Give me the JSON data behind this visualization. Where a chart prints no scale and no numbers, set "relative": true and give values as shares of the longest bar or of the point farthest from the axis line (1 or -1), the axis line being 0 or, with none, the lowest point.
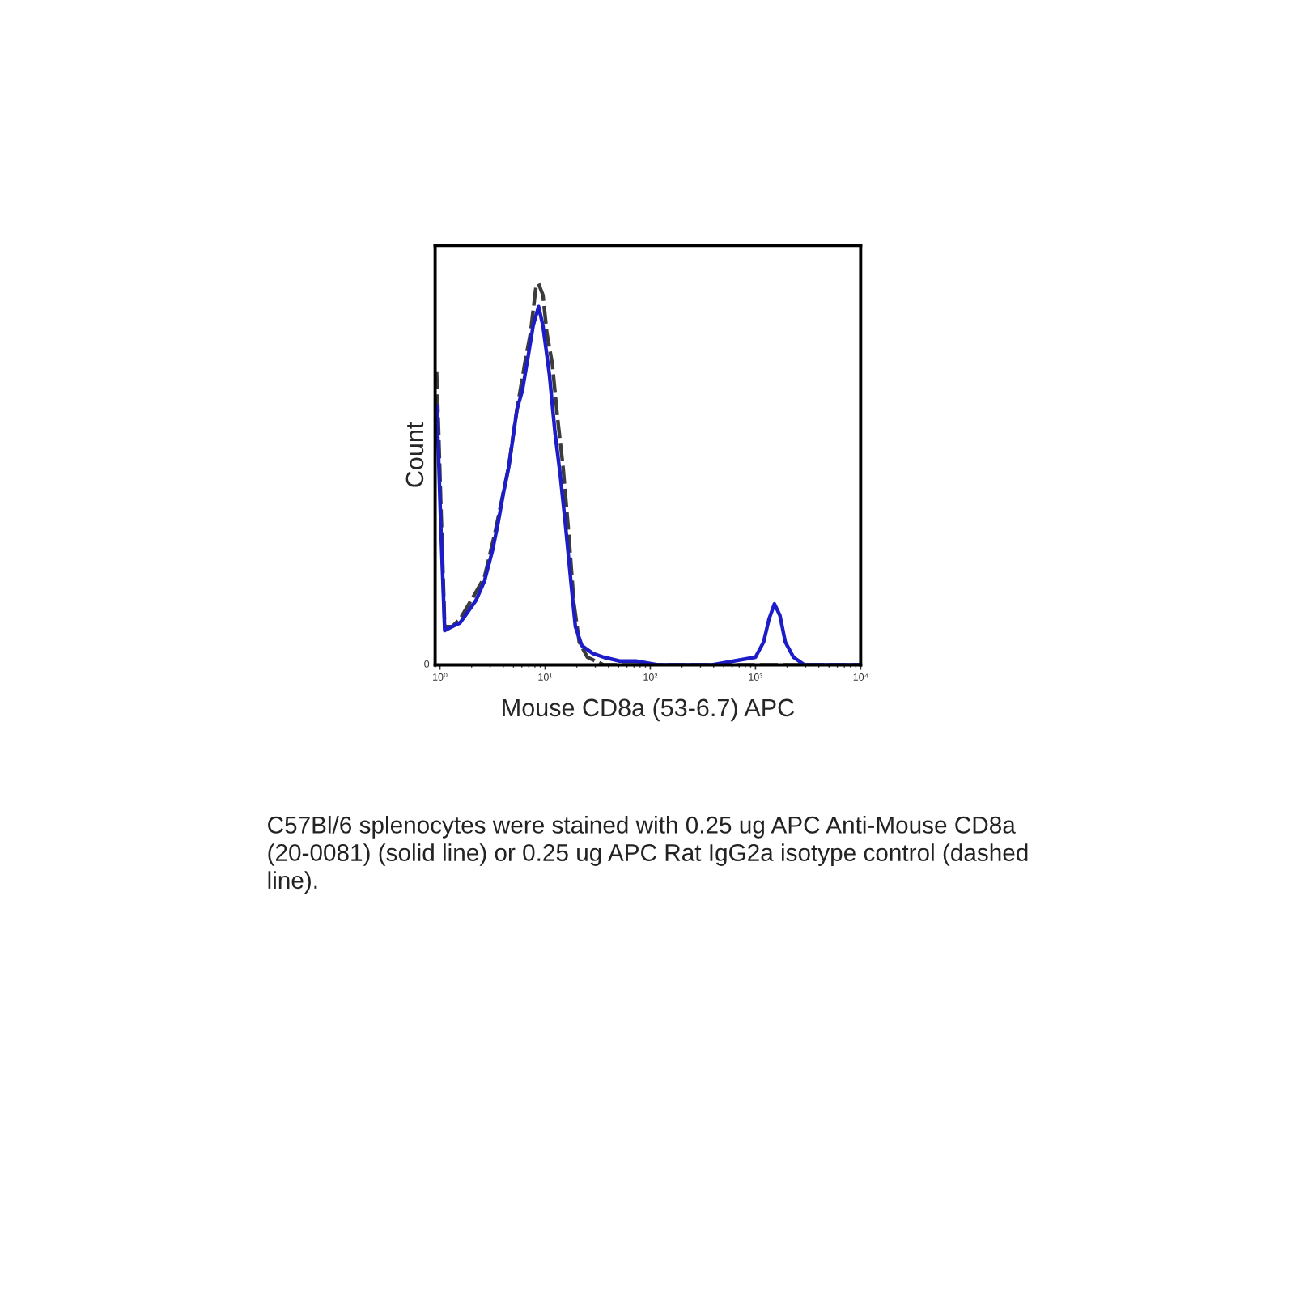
{
  "chart_data": {
    "type": "line",
    "xlabel": "Mouse CD8a (53-6.7) APC",
    "ylabel": "Count",
    "log": "x",
    "relative": true,
    "xlim": [
      0.9,
      10000
    ],
    "xticks": [
      {
        "value": 1,
        "label": "10⁰"
      },
      {
        "value": 10,
        "label": "10¹"
      },
      {
        "value": 100,
        "label": "10²"
      },
      {
        "value": 1000,
        "label": "10³"
      },
      {
        "value": 10000,
        "label": "10⁴"
      }
    ],
    "series": [
      {
        "color": "#3c3c3c",
        "line_style": "dashed",
        "x": [
          0.93,
          0.97,
          1.02,
          1.11,
          1.3,
          1.55,
          2.09,
          2.65,
          3.36,
          4.5,
          5.4,
          6.5,
          7.26,
          8.17,
          8.67,
          9.53,
          10.4,
          11.7,
          13.1,
          14.8,
          16.7,
          18.8,
          21.1,
          25.2,
          36,
          10000
        ],
        "values": [
          0.77,
          0.62,
          0.42,
          0.1,
          0.1,
          0.12,
          0.18,
          0.23,
          0.35,
          0.52,
          0.67,
          0.8,
          0.87,
          0.99,
          1.0,
          0.97,
          0.87,
          0.79,
          0.65,
          0.52,
          0.35,
          0.16,
          0.06,
          0.02,
          0,
          0
        ]
      },
      {
        "color": "#1c1cc8",
        "line_style": "solid",
        "x": [
          0.93,
          0.97,
          1.02,
          1.11,
          1.3,
          1.55,
          1.75,
          2.21,
          2.65,
          3.16,
          3.56,
          4.01,
          4.52,
          5.4,
          6.08,
          7.0,
          7.7,
          8.67,
          9.53,
          11.0,
          12.4,
          13.9,
          15.7,
          17.7,
          19.4,
          22.4,
          28.4,
          36,
          51,
          73,
          118,
          387,
          622,
          1000,
          1195,
          1345,
          1515,
          1706,
          1922,
          2297,
          2911,
          10000
        ],
        "values": [
          0.68,
          0.55,
          0.36,
          0.09,
          0.1,
          0.11,
          0.13,
          0.17,
          0.22,
          0.3,
          0.37,
          0.45,
          0.52,
          0.67,
          0.72,
          0.82,
          0.89,
          0.94,
          0.89,
          0.76,
          0.61,
          0.5,
          0.36,
          0.21,
          0.1,
          0.05,
          0.03,
          0.02,
          0.01,
          0.01,
          0,
          0,
          0.01,
          0.02,
          0.06,
          0.12,
          0.16,
          0.13,
          0.06,
          0.02,
          0,
          0
        ]
      }
    ],
    "annotations": [
      "0",
      "C57Bl/6 splenocytes were stained with 0.25 ug APC Anti-Mouse CD8a (20-0081) (solid line) or 0.25 ug APC Rat IgG2a isotype control (dashed line)."
    ]
  }
}
